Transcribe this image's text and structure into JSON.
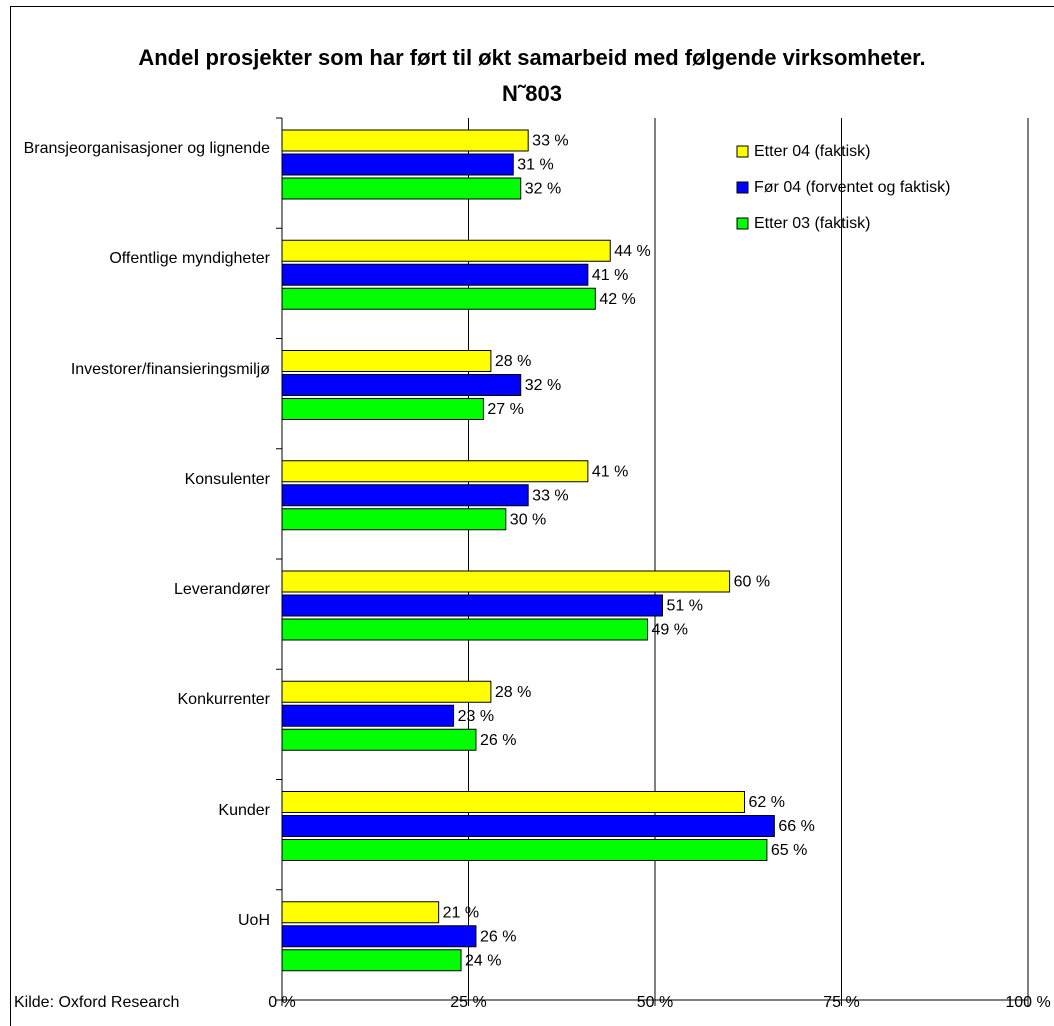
{
  "chart_data": {
    "type": "barh",
    "title": "Andel prosjekter som har ført til økt samarbeid med følgende virksomheter. N˜803",
    "source": "Kilde: Oxford Research",
    "categories": [
      "Bransjeorganisasjoner og lignende",
      "Offentlige myndigheter",
      "Investorer/finansieringsmiljø",
      "Konsulenter",
      "Leverandører",
      "Konkurrenter",
      "Kunder",
      "UoH"
    ],
    "series": [
      {
        "name": "Etter 04 (faktisk)",
        "color": "#ffff00",
        "values": [
          33,
          44,
          28,
          41,
          60,
          28,
          62,
          21
        ],
        "value_labels": [
          "33 %",
          "44 %",
          "28 %",
          "41 %",
          "60 %",
          "28 %",
          "62 %",
          "21 %"
        ]
      },
      {
        "name": "Før 04 (forventet og faktisk)",
        "color": "#0000ff",
        "values": [
          31,
          41,
          32,
          33,
          51,
          23,
          66,
          26
        ],
        "value_labels": [
          "31 %",
          "41 %",
          "32 %",
          "33 %",
          "51 %",
          "23 %",
          "66 %",
          "26 %"
        ]
      },
      {
        "name": "Etter 03 (faktisk)",
        "color": "#00ff00",
        "values": [
          32,
          42,
          27,
          30,
          49,
          26,
          65,
          24
        ],
        "value_labels": [
          "32 %",
          "42 %",
          "27 %",
          "30 %",
          "49 %",
          "26 %",
          "65 %",
          "24 %"
        ]
      }
    ],
    "xlim": [
      0,
      100
    ],
    "xticks": [
      {
        "value": 0,
        "label": "0 %"
      },
      {
        "value": 25,
        "label": "25 %"
      },
      {
        "value": 50,
        "label": "50 %"
      },
      {
        "value": 75,
        "label": "75 %"
      },
      {
        "value": 100,
        "label": "100 %"
      }
    ],
    "grid": true,
    "legend": "top-right"
  }
}
